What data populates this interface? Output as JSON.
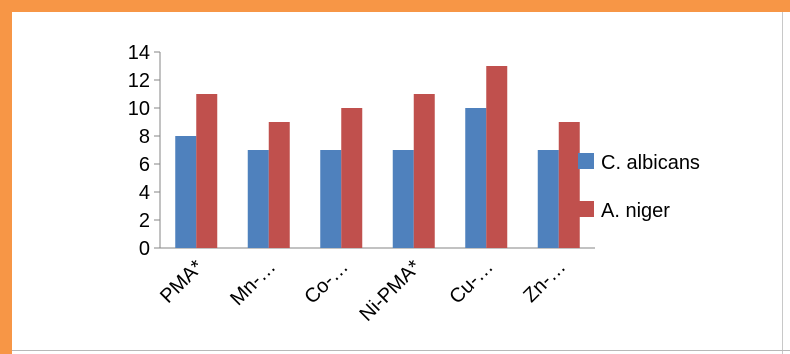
{
  "chart_data": {
    "type": "bar",
    "categories": [
      "PMA*",
      "Mn-…",
      "Co-…",
      "Ni-PMA*",
      "Cu-…",
      "Zn-…"
    ],
    "series": [
      {
        "name": "C. albicans",
        "values": [
          8,
          7,
          7,
          7,
          10,
          7
        ],
        "color": "#4f81bd"
      },
      {
        "name": "A. niger",
        "values": [
          11,
          9,
          10,
          11,
          13,
          9
        ],
        "color": "#c0504d"
      }
    ],
    "yticks": [
      "0",
      "2",
      "4",
      "6",
      "8",
      "10",
      "12",
      "14"
    ],
    "ylim": [
      0,
      14
    ],
    "grid": false,
    "legend_position": "right",
    "x_label_rotation": "diagonal"
  },
  "frame": {
    "accent_color": "#f79646"
  }
}
